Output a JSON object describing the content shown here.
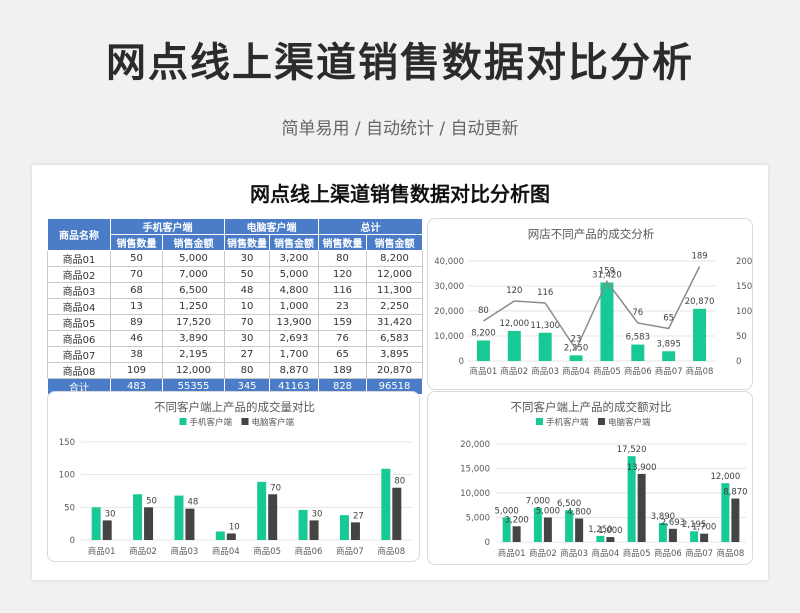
{
  "header": {
    "title": "网点线上渠道销售数据对比分析",
    "subtitle": "简单易用 / 自动统计 / 自动更新"
  },
  "sheet": {
    "title": "网点线上渠道销售数据对比分析图"
  },
  "table": {
    "col_product": "商品名称",
    "groups": [
      "手机客户端",
      "电脑客户端",
      "总计"
    ],
    "subheaders": [
      "销售数量",
      "销售金额",
      "销售数量",
      "销售金额",
      "销售数量",
      "销售金额"
    ],
    "rows": [
      [
        "商品01",
        "50",
        "5,000",
        "30",
        "3,200",
        "80",
        "8,200"
      ],
      [
        "商品02",
        "70",
        "7,000",
        "50",
        "5,000",
        "120",
        "12,000"
      ],
      [
        "商品03",
        "68",
        "6,500",
        "48",
        "4,800",
        "116",
        "11,300"
      ],
      [
        "商品04",
        "13",
        "1,250",
        "10",
        "1,000",
        "23",
        "2,250"
      ],
      [
        "商品05",
        "89",
        "17,520",
        "70",
        "13,900",
        "159",
        "31,420"
      ],
      [
        "商品06",
        "46",
        "3,890",
        "30",
        "2,693",
        "76",
        "6,583"
      ],
      [
        "商品07",
        "38",
        "2,195",
        "27",
        "1,700",
        "65",
        "3,895"
      ],
      [
        "商品08",
        "109",
        "12,000",
        "80",
        "8,870",
        "189",
        "20,870"
      ]
    ],
    "total": [
      "合计",
      "483",
      "55355",
      "345",
      "41163",
      "828",
      "96518"
    ]
  },
  "colors": {
    "accent": "#4a7cc7",
    "green": "#18c995",
    "dark": "#444444",
    "line": "#8c8c8c"
  },
  "chart_data": [
    {
      "type": "bar",
      "title": "网店不同产品的成交分析",
      "categories": [
        "商品01",
        "商品02",
        "商品03",
        "商品04",
        "商品05",
        "商品06",
        "商品07",
        "商品08"
      ],
      "series": [
        {
          "values": [
            8200,
            12000,
            11300,
            2250,
            31420,
            6583,
            3895,
            20870
          ],
          "labels": [
            "8,200",
            "12,000",
            "11,300",
            "2,250",
            "31,420",
            "6,583",
            "3,895",
            "20,870"
          ],
          "axis": "left",
          "kind": "bar"
        },
        {
          "values": [
            80,
            120,
            116,
            23,
            159,
            76,
            65,
            189
          ],
          "labels": [
            "80",
            "120",
            "116",
            "23",
            "159",
            "76",
            "65",
            "189"
          ],
          "axis": "right",
          "kind": "line"
        }
      ],
      "y_left_ticks": [
        "0",
        "10,000",
        "20,000",
        "30,000",
        "40,000"
      ],
      "y_right_ticks": [
        "0",
        "50",
        "100",
        "150",
        "200"
      ],
      "ylim_left": [
        0,
        40000
      ],
      "ylim_right": [
        0,
        200
      ]
    },
    {
      "type": "bar",
      "title": "不同客户端上产品的成交量对比",
      "categories": [
        "商品01",
        "商品02",
        "商品03",
        "商品04",
        "商品05",
        "商品06",
        "商品07",
        "商品08"
      ],
      "series": [
        {
          "name": "手机客户端",
          "values": [
            50,
            70,
            68,
            13,
            89,
            46,
            38,
            109
          ]
        },
        {
          "name": "电脑客户端",
          "values": [
            30,
            50,
            48,
            10,
            70,
            30,
            27,
            80
          ],
          "labels": [
            "30",
            "50",
            "48",
            "10",
            "70",
            "30",
            "27",
            "80"
          ]
        }
      ],
      "y_ticks": [
        "0",
        "50",
        "100",
        "150"
      ],
      "ylim": [
        0,
        150
      ],
      "legend": "top"
    },
    {
      "type": "bar",
      "title": "不同客户端上产品的成交额对比",
      "categories": [
        "商品01",
        "商品02",
        "商品03",
        "商品04",
        "商品05",
        "商品06",
        "商品07",
        "商品08"
      ],
      "series": [
        {
          "name": "手机客户端",
          "values": [
            5000,
            7000,
            6500,
            1250,
            17520,
            3890,
            2195,
            12000
          ],
          "labels": [
            "5,000",
            "7,000",
            "6,500",
            "1,250",
            "17,520",
            "3,890",
            "2,195",
            "12,000"
          ]
        },
        {
          "name": "电脑客户端",
          "values": [
            3200,
            5000,
            4800,
            1000,
            13900,
            2693,
            1700,
            8870
          ],
          "labels": [
            "3,200",
            "5,000",
            "4,800",
            "1,000",
            "13,900",
            "2,693",
            "1,700",
            "8,870"
          ]
        }
      ],
      "y_ticks": [
        "0",
        "5,000",
        "10,000",
        "15,000",
        "20,000"
      ],
      "ylim": [
        0,
        20000
      ],
      "legend": "top"
    }
  ]
}
